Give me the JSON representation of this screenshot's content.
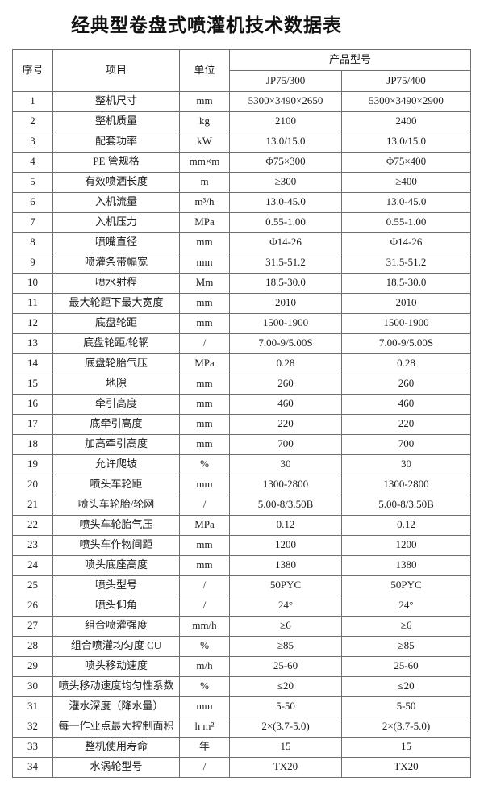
{
  "title": "经典型卷盘式喷灌机技术数据表",
  "table": {
    "headers": {
      "index": "序号",
      "item": "项目",
      "unit": "单位",
      "model_group": "产品型号",
      "models": [
        "JP75/300",
        "JP75/400"
      ]
    },
    "rows": [
      {
        "no": "1",
        "item": "整机尺寸",
        "unit": "mm",
        "v1": "5300×3490×2650",
        "v2": "5300×3490×2900"
      },
      {
        "no": "2",
        "item": "整机质量",
        "unit": "kg",
        "v1": "2100",
        "v2": "2400"
      },
      {
        "no": "3",
        "item": "配套功率",
        "unit": "kW",
        "v1": "13.0/15.0",
        "v2": "13.0/15.0"
      },
      {
        "no": "4",
        "item": "PE 管规格",
        "unit": "mm×m",
        "v1": "Φ75×300",
        "v2": "Φ75×400"
      },
      {
        "no": "5",
        "item": "有效喷洒长度",
        "unit": "m",
        "v1": "≥300",
        "v2": "≥400"
      },
      {
        "no": "6",
        "item": "入机流量",
        "unit": "m³/h",
        "v1": "13.0-45.0",
        "v2": "13.0-45.0"
      },
      {
        "no": "7",
        "item": "入机压力",
        "unit": "MPa",
        "v1": "0.55-1.00",
        "v2": "0.55-1.00"
      },
      {
        "no": "8",
        "item": "喷嘴直径",
        "unit": "mm",
        "v1": "Φ14-26",
        "v2": "Φ14-26"
      },
      {
        "no": "9",
        "item": "喷灌条带幅宽",
        "unit": "mm",
        "v1": "31.5-51.2",
        "v2": "31.5-51.2"
      },
      {
        "no": "10",
        "item": "喷水射程",
        "unit": "Mm",
        "v1": "18.5-30.0",
        "v2": "18.5-30.0"
      },
      {
        "no": "11",
        "item": "最大轮距下最大宽度",
        "unit": "mm",
        "v1": "2010",
        "v2": "2010"
      },
      {
        "no": "12",
        "item": "底盘轮距",
        "unit": "mm",
        "v1": "1500-1900",
        "v2": "1500-1900"
      },
      {
        "no": "13",
        "item": "底盘轮距/轮辋",
        "unit": "/",
        "v1": "7.00-9/5.00S",
        "v2": "7.00-9/5.00S"
      },
      {
        "no": "14",
        "item": "底盘轮胎气压",
        "unit": "MPa",
        "v1": "0.28",
        "v2": "0.28"
      },
      {
        "no": "15",
        "item": "地隙",
        "unit": "mm",
        "v1": "260",
        "v2": "260"
      },
      {
        "no": "16",
        "item": "牵引高度",
        "unit": "mm",
        "v1": "460",
        "v2": "460"
      },
      {
        "no": "17",
        "item": "底牵引高度",
        "unit": "mm",
        "v1": "220",
        "v2": "220"
      },
      {
        "no": "18",
        "item": "加高牵引高度",
        "unit": "mm",
        "v1": "700",
        "v2": "700"
      },
      {
        "no": "19",
        "item": "允许爬坡",
        "unit": "%",
        "v1": "30",
        "v2": "30"
      },
      {
        "no": "20",
        "item": "喷头车轮距",
        "unit": "mm",
        "v1": "1300-2800",
        "v2": "1300-2800"
      },
      {
        "no": "21",
        "item": "喷头车轮胎/轮网",
        "unit": "/",
        "v1": "5.00-8/3.50B",
        "v2": "5.00-8/3.50B"
      },
      {
        "no": "22",
        "item": "喷头车轮胎气压",
        "unit": "MPa",
        "v1": "0.12",
        "v2": "0.12"
      },
      {
        "no": "23",
        "item": "喷头车作物间距",
        "unit": "mm",
        "v1": "1200",
        "v2": "1200"
      },
      {
        "no": "24",
        "item": "喷头底座高度",
        "unit": "mm",
        "v1": "1380",
        "v2": "1380"
      },
      {
        "no": "25",
        "item": "喷头型号",
        "unit": "/",
        "v1": "50PYC",
        "v2": "50PYC"
      },
      {
        "no": "26",
        "item": "喷头仰角",
        "unit": "/",
        "v1": "24°",
        "v2": "24°"
      },
      {
        "no": "27",
        "item": "组合喷灌强度",
        "unit": "mm/h",
        "v1": "≥6",
        "v2": "≥6"
      },
      {
        "no": "28",
        "item": "组合喷灌均匀度 CU",
        "unit": "%",
        "v1": "≥85",
        "v2": "≥85"
      },
      {
        "no": "29",
        "item": "喷头移动速度",
        "unit": "m/h",
        "v1": "25-60",
        "v2": "25-60"
      },
      {
        "no": "30",
        "item": "喷头移动速度均匀性系数",
        "unit": "%",
        "v1": "≤20",
        "v2": "≤20"
      },
      {
        "no": "31",
        "item": "灌水深度（降水量）",
        "unit": "mm",
        "v1": "5-50",
        "v2": "5-50"
      },
      {
        "no": "32",
        "item": "每一作业点最大控制面积",
        "unit": "h m²",
        "v1": "2×(3.7-5.0)",
        "v2": "2×(3.7-5.0)"
      },
      {
        "no": "33",
        "item": "整机使用寿命",
        "unit": "年",
        "v1": "15",
        "v2": "15"
      },
      {
        "no": "34",
        "item": "水涡轮型号",
        "unit": "/",
        "v1": "TX20",
        "v2": "TX20"
      }
    ]
  }
}
